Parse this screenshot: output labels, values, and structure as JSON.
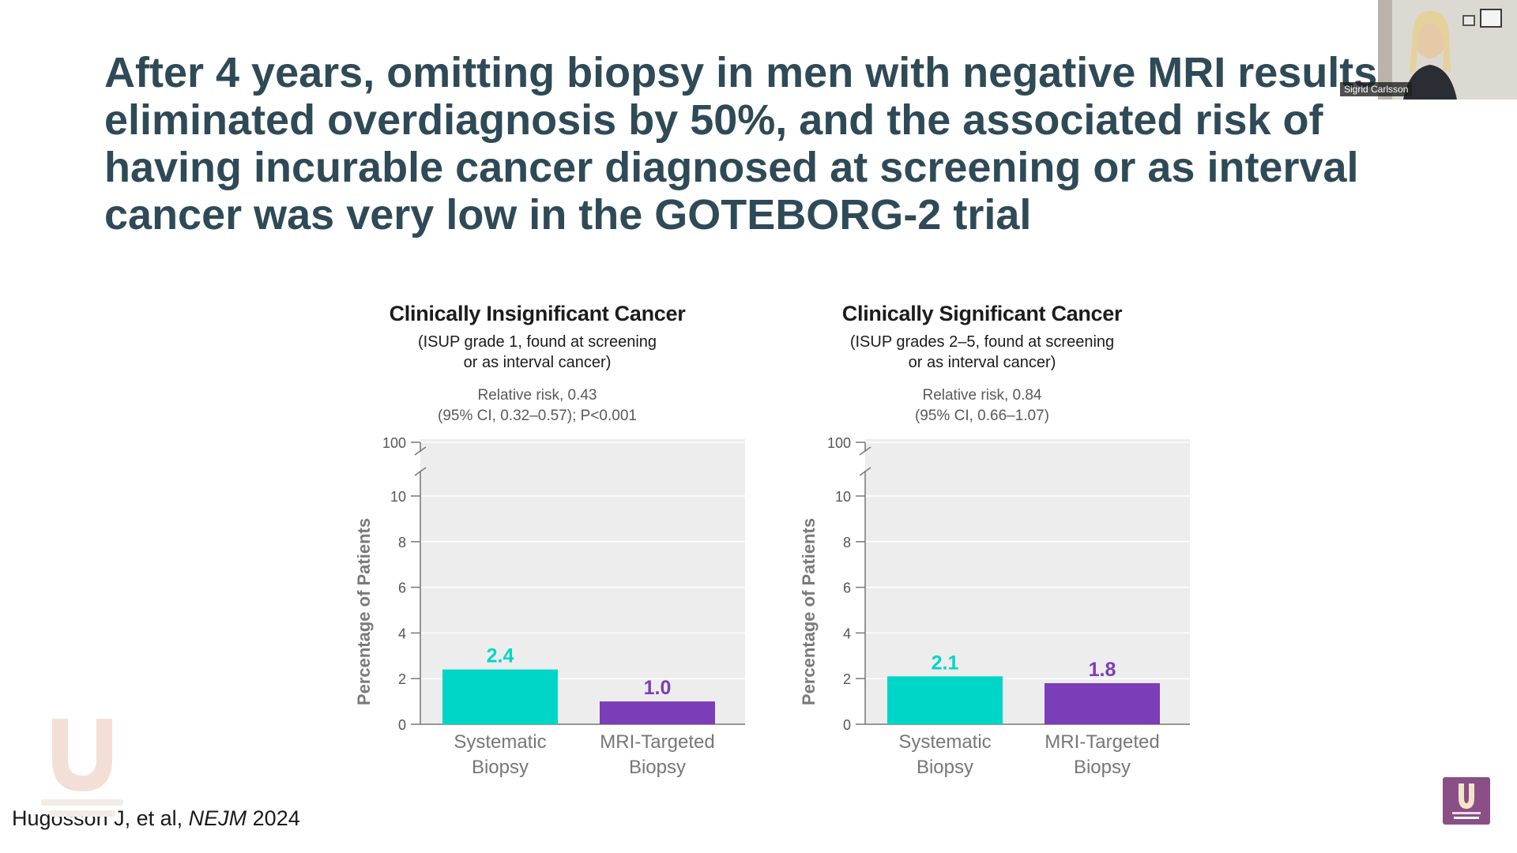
{
  "slide": {
    "title": "After 4 years, omitting biopsy in men with negative MRI results eliminated overdiagnosis by 50%, and the associated risk of having incurable cancer diagnosed at screening or as interval cancer was very low in the GOTEBORG-2 trial"
  },
  "citation": {
    "authors": "Hugosson J, et al,",
    "journal": "NEJM",
    "year": "2024"
  },
  "webcam": {
    "name": "Sigrid Carlsson"
  },
  "colors": {
    "systematic": "#00d6c8",
    "mri_targeted": "#7b3db8",
    "title": "#2f4a57",
    "plot_bg": "#ededed"
  },
  "icons": {
    "watermark": "grand-rounds-urology-logo-watermark",
    "badge": "grand-rounds-urology-logo-icon"
  },
  "chart_data": [
    {
      "type": "bar",
      "title": "Clinically Insignificant Cancer",
      "subtitle": [
        "(ISUP grade 1, found at screening",
        "or as interval cancer)"
      ],
      "annotation": [
        "Relative risk, 0.43",
        "(95% CI, 0.32–0.57); P<0.001"
      ],
      "ylabel": "Percentage of Patients",
      "xlabel": "",
      "categories": [
        [
          "Systematic",
          "Biopsy"
        ],
        [
          "MRI-Targeted",
          "Biopsy"
        ]
      ],
      "values": [
        2.4,
        1.0
      ],
      "value_labels": [
        "2.4",
        "1.0"
      ],
      "yticks": [
        0,
        2,
        4,
        6,
        8,
        10,
        100
      ],
      "ylim": [
        0,
        100
      ],
      "axis_break": [
        10,
        100
      ],
      "grid": true,
      "legend": "none"
    },
    {
      "type": "bar",
      "title": "Clinically Significant Cancer",
      "subtitle": [
        "(ISUP grades 2–5, found at screening",
        "or as interval cancer)"
      ],
      "annotation": [
        "Relative risk, 0.84",
        "(95% CI, 0.66–1.07)"
      ],
      "ylabel": "Percentage of Patients",
      "xlabel": "",
      "categories": [
        [
          "Systematic",
          "Biopsy"
        ],
        [
          "MRI-Targeted",
          "Biopsy"
        ]
      ],
      "values": [
        2.1,
        1.8
      ],
      "value_labels": [
        "2.1",
        "1.8"
      ],
      "yticks": [
        0,
        2,
        4,
        6,
        8,
        10,
        100
      ],
      "ylim": [
        0,
        100
      ],
      "axis_break": [
        10,
        100
      ],
      "grid": true,
      "legend": "none"
    }
  ]
}
